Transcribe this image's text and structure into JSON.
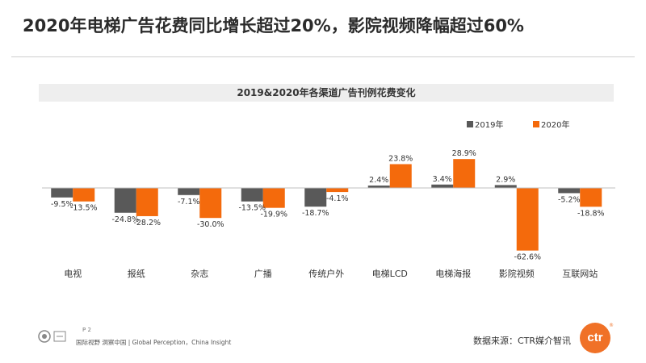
{
  "page": {
    "title": "2020年电梯广告花费同比增长超过20%，影院视频降幅超过60%",
    "page_number": "P 2",
    "footer_text": "国际视野 洞察中国 | Global Perception，China Insight",
    "source": "数据来源：CTR媒介智讯",
    "brand": "ctr",
    "brand_mark": "®"
  },
  "colors": {
    "series_2019": "#595959",
    "series_2020": "#f46a0c",
    "axis": "#bfbfbf"
  },
  "chart_data": {
    "type": "bar",
    "title": "2019&2020年各渠道广告刊例花费变化",
    "categories": [
      "电视",
      "报纸",
      "杂志",
      "广播",
      "传统户外",
      "电梯LCD",
      "电梯海报",
      "影院视频",
      "互联网站"
    ],
    "series": [
      {
        "name": "2019年",
        "values": [
          -9.5,
          -24.8,
          -7.1,
          -13.5,
          -18.7,
          2.4,
          3.4,
          2.9,
          -5.2
        ]
      },
      {
        "name": "2020年",
        "values": [
          -13.5,
          -28.2,
          -30.0,
          -19.9,
          -4.1,
          23.8,
          28.9,
          -62.6,
          -18.8
        ]
      }
    ],
    "data_labels": [
      [
        "-9.5%",
        "-24.8%",
        "-7.1%",
        "-13.5%",
        "-18.7%",
        "2.4%",
        "3.4%",
        "2.9%",
        "-5.2%"
      ],
      [
        "-13.5%",
        "-28.2%",
        "-30.0%",
        "-19.9%",
        "-4.1%",
        "23.8%",
        "28.9%",
        "-62.6%",
        "-18.8%"
      ]
    ],
    "legend_position": "top-right"
  }
}
